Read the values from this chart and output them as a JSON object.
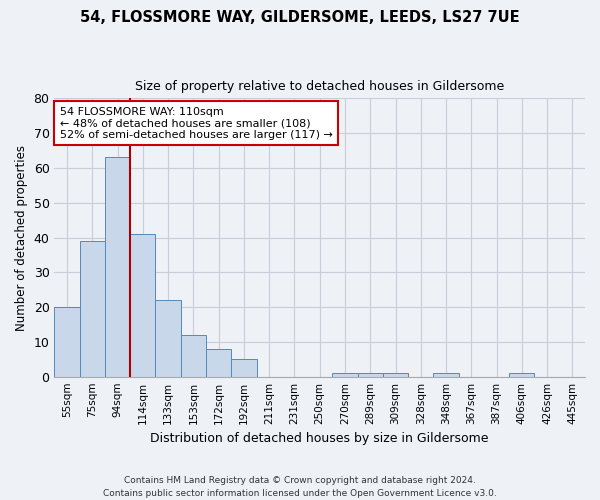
{
  "title1": "54, FLOSSMORE WAY, GILDERSOME, LEEDS, LS27 7UE",
  "title2": "Size of property relative to detached houses in Gildersome",
  "xlabel": "Distribution of detached houses by size in Gildersome",
  "ylabel": "Number of detached properties",
  "bin_labels": [
    "55sqm",
    "75sqm",
    "94sqm",
    "114sqm",
    "133sqm",
    "153sqm",
    "172sqm",
    "192sqm",
    "211sqm",
    "231sqm",
    "250sqm",
    "270sqm",
    "289sqm",
    "309sqm",
    "328sqm",
    "348sqm",
    "367sqm",
    "387sqm",
    "406sqm",
    "426sqm",
    "445sqm"
  ],
  "bar_values": [
    20,
    39,
    63,
    41,
    22,
    12,
    8,
    5,
    0,
    0,
    0,
    1,
    1,
    1,
    0,
    1,
    0,
    0,
    1,
    0,
    0
  ],
  "bar_color": "#c8d8ea",
  "bar_edge_color": "#5588bb",
  "vline_x": 2.5,
  "vline_color": "#aa0000",
  "annotation_text": "54 FLOSSMORE WAY: 110sqm\n← 48% of detached houses are smaller (108)\n52% of semi-detached houses are larger (117) →",
  "annotation_box_color": "#ffffff",
  "annotation_box_edge": "#cc0000",
  "ylim": [
    0,
    80
  ],
  "yticks": [
    0,
    10,
    20,
    30,
    40,
    50,
    60,
    70,
    80
  ],
  "footnote": "Contains HM Land Registry data © Crown copyright and database right 2024.\nContains public sector information licensed under the Open Government Licence v3.0.",
  "bg_color": "#eef2f7"
}
